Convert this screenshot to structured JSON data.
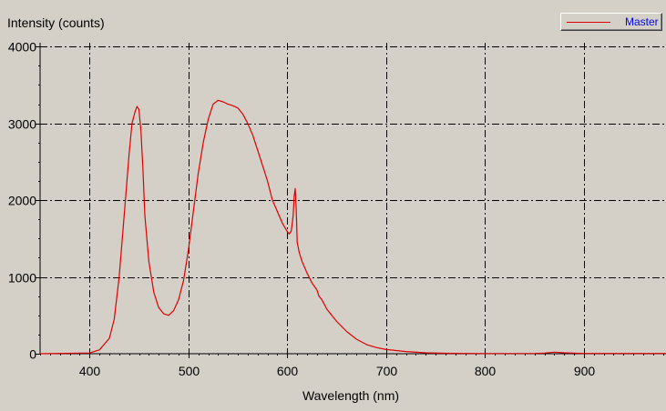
{
  "chart_data": {
    "type": "line",
    "title": "",
    "ylabel": "Intensity (counts)",
    "xlabel": "Wavelength (nm)",
    "xlim": [
      350,
      983
    ],
    "ylim": [
      0,
      4050
    ],
    "x_ticks": [
      400,
      500,
      600,
      700,
      800,
      900
    ],
    "y_ticks": [
      0,
      1000,
      2000,
      3000,
      4000
    ],
    "x_tick_labels": [
      "400",
      "500",
      "600",
      "700",
      "800",
      "900"
    ],
    "y_tick_labels": [
      "0",
      "1000",
      "2000",
      "3000",
      "4000"
    ],
    "grid": true,
    "legend_position": "top-right",
    "series": [
      {
        "name": "Master",
        "color": "#dd0000",
        "x": [
          350,
          400,
          410,
          420,
          425,
          430,
          435,
          440,
          443,
          446,
          448,
          450,
          452,
          454,
          456,
          460,
          465,
          470,
          475,
          480,
          485,
          490,
          495,
          500,
          505,
          510,
          515,
          520,
          525,
          530,
          535,
          540,
          545,
          550,
          555,
          560,
          565,
          570,
          575,
          580,
          585,
          590,
          595,
          600,
          602,
          604,
          606,
          607,
          608,
          609,
          610,
          612,
          615,
          620,
          625,
          630,
          632,
          634,
          636,
          640,
          650,
          660,
          670,
          680,
          690,
          700,
          720,
          740,
          760,
          780,
          800,
          850,
          860,
          870,
          880,
          900,
          950,
          983
        ],
        "y": [
          0,
          10,
          50,
          200,
          450,
          1000,
          1800,
          2600,
          3000,
          3150,
          3220,
          3180,
          2900,
          2400,
          1800,
          1200,
          800,
          600,
          520,
          500,
          560,
          700,
          950,
          1350,
          1850,
          2350,
          2750,
          3050,
          3250,
          3300,
          3280,
          3250,
          3230,
          3200,
          3120,
          3000,
          2850,
          2650,
          2450,
          2250,
          2000,
          1850,
          1700,
          1590,
          1560,
          1600,
          1800,
          2050,
          2150,
          1900,
          1450,
          1320,
          1200,
          1050,
          920,
          830,
          750,
          720,
          680,
          580,
          420,
          290,
          190,
          120,
          80,
          55,
          28,
          12,
          6,
          4,
          2,
          4,
          8,
          20,
          12,
          4,
          3,
          3
        ]
      }
    ]
  }
}
